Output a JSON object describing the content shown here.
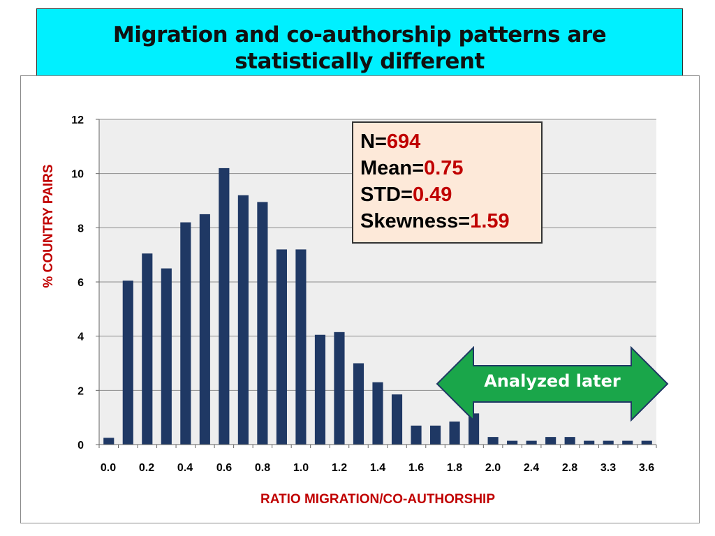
{
  "title": {
    "line1": "Migration and co-authorship patterns are",
    "line2": "statistically different"
  },
  "stats": {
    "n_label": "N=",
    "n_value": "694",
    "mean_label": "Mean=",
    "mean_value": "0.75",
    "std_label": "STD=",
    "std_value": "0.49",
    "skew_label": "Skewness=",
    "skew_value": "1.59"
  },
  "callout": {
    "label": "Analyzed later",
    "color": "#1aa64a"
  },
  "chart_data": {
    "type": "bar",
    "xlabel": "RATIO MIGRATION/CO-AUTHORSHIP",
    "ylabel": "% COUNTRY PAIRS",
    "ylim": [
      0,
      12
    ],
    "yticks": [
      0,
      2,
      4,
      6,
      8,
      10,
      12
    ],
    "xtick_labels": [
      "0.0",
      "0.2",
      "0.4",
      "0.6",
      "0.8",
      "1.0",
      "1.2",
      "1.4",
      "1.6",
      "1.8",
      "2.0",
      "2.4",
      "2.8",
      "3.3",
      "3.6"
    ],
    "values": [
      0.25,
      6.05,
      7.05,
      6.5,
      8.2,
      8.5,
      10.2,
      9.2,
      8.95,
      7.2,
      7.2,
      4.05,
      4.15,
      3.0,
      2.3,
      1.85,
      0.7,
      0.7,
      0.85,
      1.15,
      0.28,
      0.14,
      0.14,
      0.28,
      0.28,
      0.14,
      0.14,
      0.14,
      0.14
    ],
    "grid": true,
    "bar_color": "#1f3864",
    "axis_label_color": "#c00000"
  }
}
